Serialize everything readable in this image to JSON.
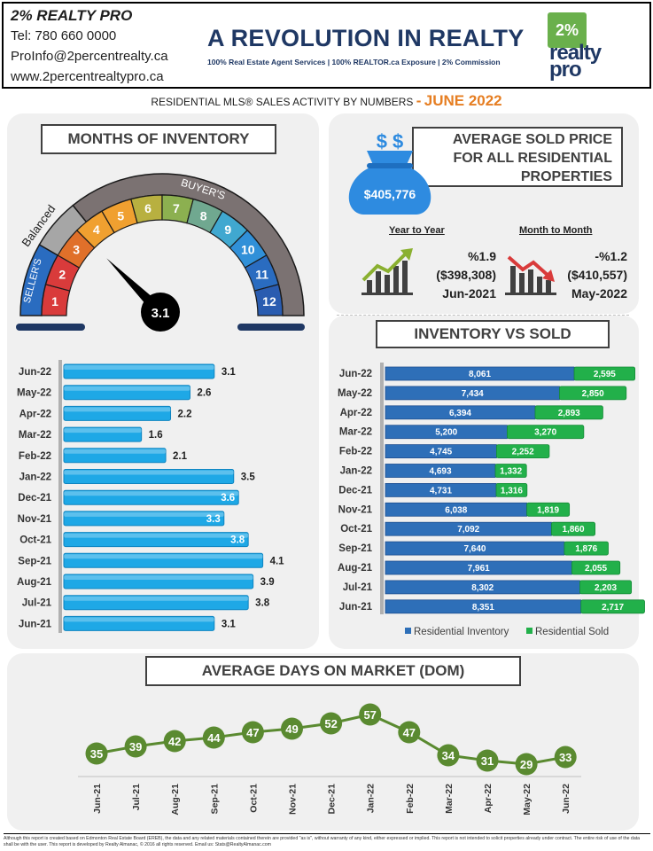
{
  "header": {
    "brand": "2% REALTY PRO",
    "phone": "Tel: 780 660 0000",
    "email": "ProInfo@2percentrealty.ca",
    "website": "www.2percentrealtypro.ca",
    "headline": "A REVOLUTION IN REALTY",
    "tagline": "100% Real Estate Agent Services | 100% REALTOR.ca Exposure | 2% Commission",
    "logo_top": "2%",
    "logo_line1": "realty",
    "logo_line2": "pro"
  },
  "subtitle": {
    "text": "RESIDENTIAL MLS® SALES ACTIVITY BY NUMBERS",
    "dash": "-",
    "month": "JUNE 2022"
  },
  "gauge": {
    "title": "MONTHS OF INVENTORY",
    "value": 3.1,
    "value_label": "3.1",
    "sellers_label": "SELLER'S",
    "balanced_label": "Balanced",
    "buyers_label": "BUYER'S",
    "segments": [
      {
        "label": "1",
        "color": "#d93b3b"
      },
      {
        "label": "2",
        "color": "#d93b3b"
      },
      {
        "label": "3",
        "color": "#e0702a"
      },
      {
        "label": "4",
        "color": "#f0a030"
      },
      {
        "label": "5",
        "color": "#f0a030"
      },
      {
        "label": "6",
        "color": "#b8b040"
      },
      {
        "label": "7",
        "color": "#8cb050"
      },
      {
        "label": "8",
        "color": "#70a890"
      },
      {
        "label": "9",
        "color": "#40a8d0"
      },
      {
        "label": "10",
        "color": "#3090d8"
      },
      {
        "label": "11",
        "color": "#2a6cc0"
      },
      {
        "label": "12",
        "color": "#2a5cb0"
      }
    ]
  },
  "price": {
    "title_line1": "AVERAGE  SOLD PRICE",
    "title_line2": "FOR ALL RESIDENTIAL",
    "title_line3": "PROPERTIES",
    "amount": "$405,776",
    "bag_symbol": "$ $",
    "yoy_head": "Year to Year",
    "yoy_pct": "%1.9",
    "yoy_price": "($398,308)",
    "yoy_date": "Jun-2021",
    "mom_head": "Month to Month",
    "mom_pct": "-%1.2",
    "mom_price": "($410,557)",
    "mom_date": "May-2022",
    "up_color": "#8ab030",
    "down_color": "#d93b3b"
  },
  "moi_chart": {
    "type": "bar",
    "orientation": "horizontal",
    "categories": [
      "Jun-22",
      "May-22",
      "Apr-22",
      "Mar-22",
      "Feb-22",
      "Jan-22",
      "Dec-21",
      "Nov-21",
      "Oct-21",
      "Sep-21",
      "Aug-21",
      "Jul-21",
      "Jun-21"
    ],
    "values": [
      3.1,
      2.6,
      2.2,
      1.6,
      2.1,
      3.5,
      3.6,
      3.3,
      3.8,
      4.1,
      3.9,
      3.8,
      3.1
    ],
    "value_labels": [
      "3.1",
      "2.6",
      "2.2",
      "1.6",
      "2.1",
      "3.5",
      "3.6",
      "3.3",
      "3.8",
      "4.1",
      "3.9",
      "3.8",
      "3.1"
    ],
    "label_inside": [
      false,
      false,
      false,
      false,
      false,
      false,
      true,
      true,
      true,
      false,
      false,
      false,
      false
    ],
    "xlim": [
      0,
      4.6
    ],
    "color": "#1ea8e6"
  },
  "inventory_chart": {
    "type": "bar",
    "orientation": "horizontal-stacked",
    "title": "INVENTORY VS SOLD",
    "categories": [
      "Jun-22",
      "May-22",
      "Apr-22",
      "Mar-22",
      "Feb-22",
      "Jan-22",
      "Dec-21",
      "Nov-21",
      "Oct-21",
      "Sep-21",
      "Aug-21",
      "Jul-21",
      "Jun-21"
    ],
    "series": [
      {
        "name": "Residential Inventory",
        "color": "#2e6fb8",
        "values": [
          8061,
          7434,
          6394,
          5200,
          4745,
          4693,
          4731,
          6038,
          7092,
          7640,
          7961,
          8302,
          8351
        ],
        "labels": [
          "8,061",
          "7,434",
          "6,394",
          "5,200",
          "4,745",
          "4,693",
          "4,731",
          "6,038",
          "7,092",
          "7,640",
          "7,961",
          "8,302",
          "8,351"
        ]
      },
      {
        "name": "Residential Sold",
        "color": "#22b04a",
        "values": [
          2595,
          2850,
          2893,
          3270,
          2252,
          1332,
          1316,
          1819,
          1860,
          1876,
          2055,
          2203,
          2717
        ],
        "labels": [
          "2,595",
          "2,850",
          "2,893",
          "3,270",
          "2,252",
          "1,332",
          "1,316",
          "1,819",
          "1,860",
          "1,876",
          "2,055",
          "2,203",
          "2,717"
        ]
      }
    ],
    "xlim": [
      0,
      11200
    ],
    "legend": "bottom"
  },
  "dom_chart": {
    "type": "line",
    "title": "AVERAGE DAYS ON MARKET (DOM)",
    "categories": [
      "Jun-21",
      "Jul-21",
      "Aug-21",
      "Sep-21",
      "Oct-21",
      "Nov-21",
      "Dec-21",
      "Jan-22",
      "Feb-22",
      "Mar-22",
      "Apr-22",
      "May-22",
      "Jun-22"
    ],
    "values": [
      35,
      39,
      42,
      44,
      47,
      49,
      52,
      57,
      47,
      34,
      31,
      29,
      33
    ],
    "value_labels": [
      "35",
      "39",
      "42",
      "44",
      "47",
      "49",
      "52",
      "57",
      "47",
      "34",
      "31",
      "29",
      "33"
    ],
    "ylim": [
      20,
      65
    ],
    "color": "#5a8a30"
  },
  "footer": {
    "text": "Although this report is created based on Edmonton Real Estate Board (EREB), the data and any related materials contained therein are provided \"as is\", without warranty of any kind, either expressed or implied.  This report is not intended to solicit properties already under contract.  The entire risk of use of the data shall be with the user.  This report is developed by Realty Almanac, © 2016 all rights reserved. Email us: Stats@RealtyAlmanac.com"
  }
}
